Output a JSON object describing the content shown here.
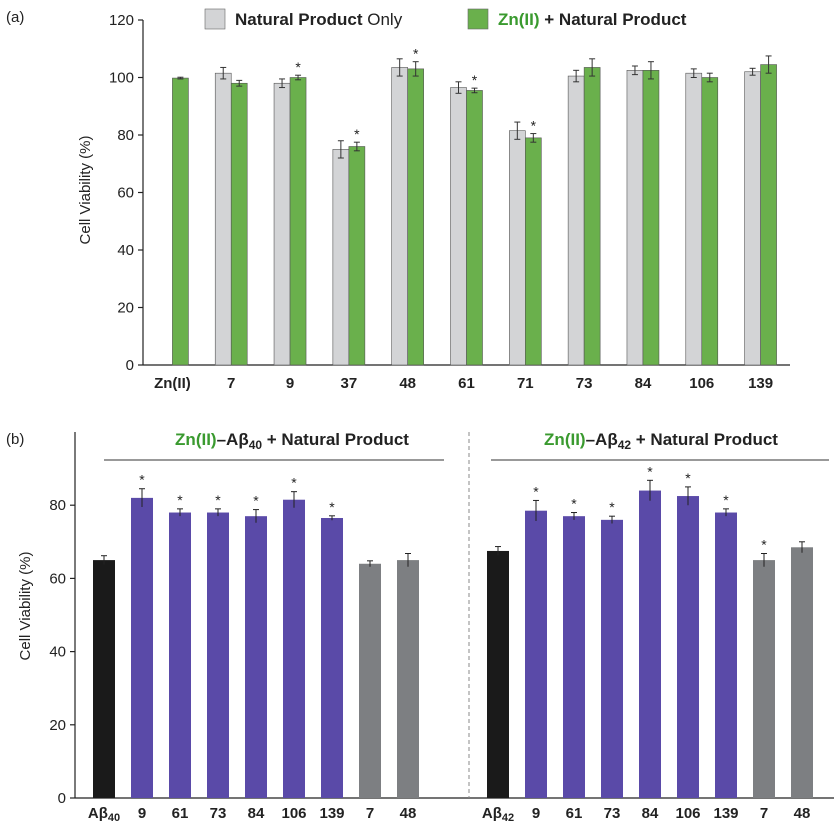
{
  "colors": {
    "light_gray": "#d3d4d6",
    "green": "#6ab04c",
    "green_text": "#3a9a2f",
    "purple": "#5a4aa8",
    "black": "#1a1a1a",
    "gray": "#7d7f82",
    "axis": "#222222"
  },
  "chart_data": [
    {
      "type": "bar",
      "panel_label": "(a)",
      "ylabel": "Cell Viability (%)",
      "ylim": [
        0,
        120
      ],
      "yticks": [
        "0",
        "20",
        "40",
        "60",
        "80",
        "100",
        "120"
      ],
      "categories": [
        "Zn(II)",
        "7",
        "9",
        "37",
        "48",
        "61",
        "71",
        "73",
        "84",
        "106",
        "139"
      ],
      "legend": {
        "placement": "top",
        "items": [
          {
            "bold": "Natural Product",
            "rest": " Only",
            "color": "#d3d4d6"
          },
          {
            "bold": "Zn(II)",
            "rest": " + Natural Product",
            "color": "#6ab04c"
          }
        ]
      },
      "series": [
        {
          "name": "Natural Product Only",
          "values": [
            null,
            101.5,
            98,
            75,
            103.5,
            96.5,
            81.5,
            100.5,
            102.5,
            101.5,
            102
          ],
          "errors": [
            null,
            2,
            1.5,
            3,
            3,
            2,
            3,
            2,
            1.5,
            1.5,
            1.2
          ]
        },
        {
          "name": "Zn(II) + Natural Product",
          "values": [
            99.8,
            98,
            100,
            76,
            103,
            95.5,
            79,
            103.5,
            102.5,
            100,
            104.5
          ],
          "errors": [
            0.3,
            1,
            0.8,
            1.5,
            2.5,
            0.8,
            1.5,
            3,
            3,
            1.5,
            3
          ],
          "significance": [
            "",
            "",
            "*",
            "*",
            "*",
            "*",
            "*",
            "",
            "",
            "",
            ""
          ]
        }
      ]
    },
    {
      "type": "bar",
      "panel_label": "(b)",
      "ylabel": "Cell Viability (%)",
      "ylim": [
        0,
        100
      ],
      "yticks": [
        "0",
        "20",
        "40",
        "60",
        "80"
      ],
      "group_titles": [
        {
          "green": "Zn(II)",
          "rest": "–Aβ",
          "sub": "40",
          "tail": " + Natural Product"
        },
        {
          "green": "Zn(II)",
          "rest": "–Aβ",
          "sub": "42",
          "tail": " + Natural Product"
        }
      ],
      "groups": [
        {
          "categories": [
            {
              "main": "Aβ",
              "sub": "40"
            },
            {
              "main": "9"
            },
            {
              "main": "61"
            },
            {
              "main": "73"
            },
            {
              "main": "84"
            },
            {
              "main": "106"
            },
            {
              "main": "139"
            },
            {
              "main": "7"
            },
            {
              "main": "48"
            }
          ],
          "values": [
            65,
            82,
            78,
            78,
            77,
            81.5,
            76.5,
            64,
            65
          ],
          "errors": [
            1.2,
            2.5,
            1,
            1,
            1.8,
            2.2,
            0.6,
            0.8,
            1.8
          ],
          "colors": [
            "#1a1a1a",
            "#5a4aa8",
            "#5a4aa8",
            "#5a4aa8",
            "#5a4aa8",
            "#5a4aa8",
            "#5a4aa8",
            "#7d7f82",
            "#7d7f82"
          ],
          "significance": [
            "",
            "*",
            "*",
            "*",
            "*",
            "*",
            "*",
            "",
            ""
          ]
        },
        {
          "categories": [
            {
              "main": "Aβ",
              "sub": "42"
            },
            {
              "main": "9"
            },
            {
              "main": "61"
            },
            {
              "main": "73"
            },
            {
              "main": "84"
            },
            {
              "main": "106"
            },
            {
              "main": "139"
            },
            {
              "main": "7"
            },
            {
              "main": "48"
            }
          ],
          "values": [
            67.5,
            78.5,
            77,
            76,
            84,
            82.5,
            78,
            65,
            68.5
          ],
          "errors": [
            1.2,
            2.8,
            1,
            1,
            2.8,
            2.5,
            1,
            1.8,
            1.5
          ],
          "colors": [
            "#1a1a1a",
            "#5a4aa8",
            "#5a4aa8",
            "#5a4aa8",
            "#5a4aa8",
            "#5a4aa8",
            "#5a4aa8",
            "#7d7f82",
            "#7d7f82"
          ],
          "significance": [
            "",
            "*",
            "*",
            "*",
            "*",
            "*",
            "*",
            "*",
            ""
          ]
        }
      ]
    }
  ]
}
